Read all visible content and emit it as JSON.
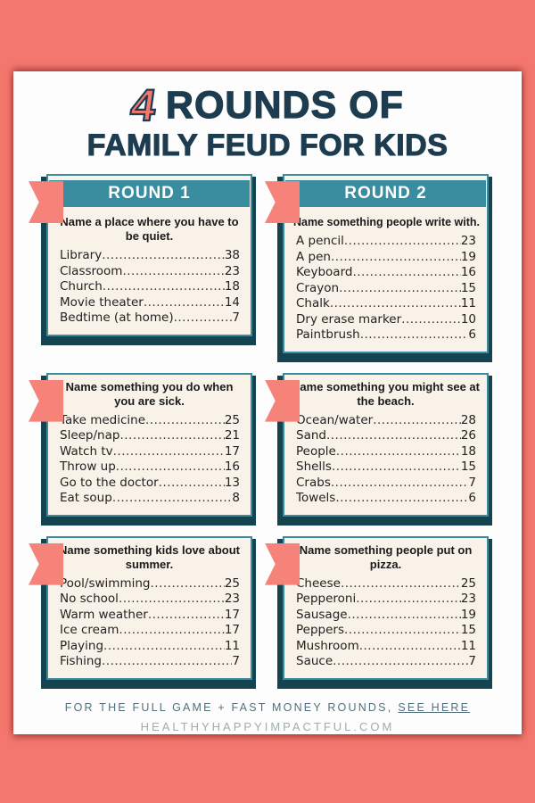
{
  "title": {
    "accent": "4",
    "line1_rest": "ROUNDS OF",
    "line2": "FAMILY FEUD FOR KIDS"
  },
  "colors": {
    "background_coral": "#f4776e",
    "teal": "#3a8d9e",
    "dark_teal_shadow": "#15434f",
    "card_cream": "#f9f2e8",
    "navy_text": "#1d3c50",
    "ribbon_coral": "#f5837a"
  },
  "cards": [
    {
      "round_label": "ROUND 1",
      "question": "Name a place where you have to be quiet.",
      "answers": [
        {
          "label": "Library",
          "points": 38
        },
        {
          "label": "Classroom",
          "points": 23
        },
        {
          "label": "Church",
          "points": 18
        },
        {
          "label": "Movie theater",
          "points": 14
        },
        {
          "label": "Bedtime (at home)",
          "points": 7
        }
      ]
    },
    {
      "round_label": "ROUND 2",
      "question": "Name something people write with.",
      "answers": [
        {
          "label": "A pencil",
          "points": 23
        },
        {
          "label": "A pen",
          "points": 19
        },
        {
          "label": "Keyboard",
          "points": 16
        },
        {
          "label": "Crayon",
          "points": 15
        },
        {
          "label": "Chalk",
          "points": 11
        },
        {
          "label": "Dry erase marker",
          "points": 10
        },
        {
          "label": "Paintbrush",
          "points": 6
        }
      ]
    },
    {
      "round_label": null,
      "question": "Name something you do when you are sick.",
      "answers": [
        {
          "label": "Take medicine",
          "points": 25
        },
        {
          "label": "Sleep/nap",
          "points": 21
        },
        {
          "label": "Watch tv",
          "points": 17
        },
        {
          "label": "Throw up",
          "points": 16
        },
        {
          "label": "Go to the doctor",
          "points": 13
        },
        {
          "label": "Eat soup",
          "points": 8
        }
      ]
    },
    {
      "round_label": null,
      "question": "Name something you might see at the beach.",
      "answers": [
        {
          "label": "Ocean/water",
          "points": 28
        },
        {
          "label": "Sand",
          "points": 26
        },
        {
          "label": "People",
          "points": 18
        },
        {
          "label": "Shells",
          "points": 15
        },
        {
          "label": "Crabs",
          "points": 7
        },
        {
          "label": "Towels",
          "points": 6
        }
      ]
    },
    {
      "round_label": null,
      "question": "Name something kids love about summer.",
      "answers": [
        {
          "label": "Pool/swimming",
          "points": 25
        },
        {
          "label": "No school",
          "points": 23
        },
        {
          "label": "Warm weather",
          "points": 17
        },
        {
          "label": "Ice cream",
          "points": 17
        },
        {
          "label": "Playing",
          "points": 11
        },
        {
          "label": "Fishing",
          "points": 7
        }
      ]
    },
    {
      "round_label": null,
      "question": "Name something people put on pizza.",
      "answers": [
        {
          "label": "Cheese",
          "points": 25
        },
        {
          "label": "Pepperoni",
          "points": 23
        },
        {
          "label": "Sausage",
          "points": 19
        },
        {
          "label": "Peppers",
          "points": 15
        },
        {
          "label": "Mushroom",
          "points": 11
        },
        {
          "label": "Sauce",
          "points": 7
        }
      ]
    }
  ],
  "footer": {
    "text": "FOR THE FULL GAME + FAST MONEY ROUNDS,",
    "link_label": "SEE HERE",
    "site": "HEALTHYHAPPYIMPACTFUL.COM"
  }
}
